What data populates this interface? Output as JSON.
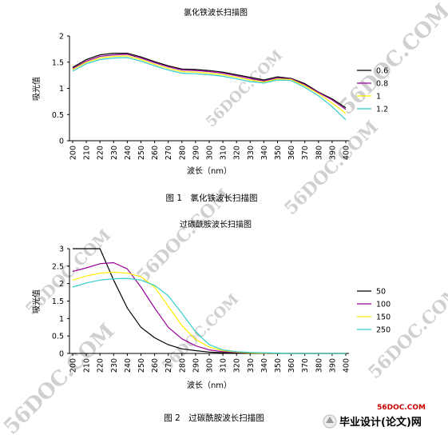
{
  "chart_data": [
    {
      "type": "line",
      "title": "氯化铁波长扫描图",
      "xlabel": "波长（nm）",
      "ylabel": "吸光值",
      "caption": "图 1　氯化铁波长扫描图",
      "x": [
        200,
        210,
        220,
        230,
        240,
        250,
        260,
        270,
        280,
        290,
        300,
        310,
        320,
        330,
        340,
        350,
        360,
        370,
        380,
        390,
        400
      ],
      "xlim": [
        200,
        400
      ],
      "ylim": [
        0,
        2
      ],
      "yticks": [
        0,
        0.5,
        1,
        1.5,
        2
      ],
      "grid": false,
      "legend_position": "right",
      "series": [
        {
          "name": "0.6",
          "color": "#000000",
          "values": [
            1.4,
            1.55,
            1.64,
            1.67,
            1.67,
            1.6,
            1.51,
            1.43,
            1.37,
            1.36,
            1.34,
            1.31,
            1.26,
            1.21,
            1.16,
            1.22,
            1.19,
            1.09,
            0.93,
            0.8,
            0.63
          ]
        },
        {
          "name": "0.8",
          "color": "#990099",
          "values": [
            1.38,
            1.52,
            1.61,
            1.64,
            1.65,
            1.58,
            1.49,
            1.41,
            1.35,
            1.34,
            1.32,
            1.29,
            1.24,
            1.19,
            1.14,
            1.2,
            1.18,
            1.07,
            0.92,
            0.78,
            0.6
          ]
        },
        {
          "name": "1",
          "color": "#ffee00",
          "values": [
            1.36,
            1.5,
            1.58,
            1.61,
            1.62,
            1.55,
            1.46,
            1.38,
            1.32,
            1.31,
            1.29,
            1.26,
            1.21,
            1.16,
            1.12,
            1.18,
            1.17,
            1.05,
            0.9,
            0.72,
            0.52
          ]
        },
        {
          "name": "1.2",
          "color": "#33cccc",
          "values": [
            1.33,
            1.47,
            1.55,
            1.58,
            1.59,
            1.52,
            1.43,
            1.35,
            1.29,
            1.28,
            1.26,
            1.23,
            1.18,
            1.13,
            1.1,
            1.16,
            1.15,
            1.02,
            0.86,
            0.65,
            0.4
          ]
        }
      ]
    },
    {
      "type": "line",
      "title": "过碳酰胺波长扫描图",
      "xlabel": "波长（nm）",
      "ylabel": "吸光值",
      "caption": "图 2　过碳酰胺波长扫描图",
      "x": [
        200,
        210,
        220,
        230,
        240,
        250,
        260,
        270,
        280,
        290,
        300,
        310,
        320,
        330,
        340,
        350,
        360,
        370,
        380,
        390,
        400
      ],
      "xlim": [
        200,
        400
      ],
      "ylim": [
        0,
        3
      ],
      "yticks": [
        0,
        0.5,
        1,
        1.5,
        2,
        2.5,
        3
      ],
      "grid": false,
      "legend_position": "right",
      "series": [
        {
          "name": "50",
          "color": "#000000",
          "values": [
            3.0,
            3.0,
            3.0,
            2.1,
            1.3,
            0.75,
            0.45,
            0.25,
            0.13,
            0.08,
            0.04,
            0.02,
            0.01,
            0.01,
            0.0,
            0.0,
            0.0,
            0.0,
            0.0,
            0.0,
            0.0
          ]
        },
        {
          "name": "100",
          "color": "#990099",
          "values": [
            2.35,
            2.45,
            2.57,
            2.6,
            2.42,
            1.9,
            1.3,
            0.75,
            0.42,
            0.22,
            0.1,
            0.05,
            0.03,
            0.02,
            0.01,
            0.01,
            0.0,
            0.0,
            0.0,
            0.0,
            0.0
          ]
        },
        {
          "name": "150",
          "color": "#ffee00",
          "values": [
            2.1,
            2.22,
            2.3,
            2.33,
            2.3,
            2.2,
            1.9,
            1.35,
            0.8,
            0.4,
            0.18,
            0.08,
            0.04,
            0.02,
            0.01,
            0.01,
            0.0,
            0.0,
            0.0,
            0.0,
            0.0
          ]
        },
        {
          "name": "250",
          "color": "#33cccc",
          "values": [
            1.9,
            2.02,
            2.1,
            2.14,
            2.15,
            2.1,
            1.95,
            1.65,
            1.15,
            0.62,
            0.25,
            0.1,
            0.05,
            0.03,
            0.02,
            0.01,
            0.0,
            0.0,
            0.0,
            0.0,
            0.0
          ]
        }
      ]
    }
  ],
  "watermark": {
    "text": "56DOC.COM",
    "color": "#d0d0d0"
  },
  "branding": {
    "site": "56DOC.COM",
    "name": "毕业设计(论文)网",
    "site_color": "#cc0000",
    "name_color": "#000000"
  }
}
